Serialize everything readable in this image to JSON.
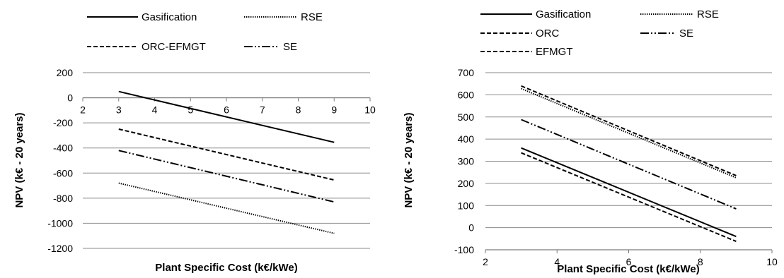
{
  "chart_data": [
    {
      "type": "line",
      "title": "",
      "xlabel": "Plant Specific Cost (k€/kWe)",
      "ylabel": "NPV  (k€ - 20 years)",
      "xlim": [
        2,
        10
      ],
      "ylim": [
        -1200,
        200
      ],
      "x_ticks": [
        2,
        3,
        4,
        5,
        6,
        7,
        8,
        9,
        10
      ],
      "y_ticks": [
        200,
        0,
        -200,
        -400,
        -600,
        -800,
        -1000,
        -1200
      ],
      "x_axis_at_y": 0,
      "grid": "horizontal",
      "legend_position": "top",
      "series": [
        {
          "name": "Gasification",
          "style": "solid",
          "x": [
            3,
            9
          ],
          "y": [
            50,
            -355
          ]
        },
        {
          "name": "RSE",
          "style": "dotted",
          "x": [
            3,
            9
          ],
          "y": [
            -680,
            -1080
          ]
        },
        {
          "name": "ORC-EFMGT",
          "style": "dashed",
          "x": [
            3,
            9
          ],
          "y": [
            -250,
            -655
          ]
        },
        {
          "name": "SE",
          "style": "dashdotdot",
          "x": [
            3,
            9
          ],
          "y": [
            -420,
            -830
          ]
        }
      ]
    },
    {
      "type": "line",
      "title": "",
      "xlabel": "Plant Specific Cost (k€/kWe)",
      "ylabel": "NPV   (k€ - 20 years)",
      "xlim": [
        2,
        10
      ],
      "ylim": [
        -100,
        700
      ],
      "x_ticks": [
        2,
        4,
        6,
        8,
        10
      ],
      "y_ticks": [
        700,
        600,
        500,
        400,
        300,
        200,
        100,
        0,
        -100
      ],
      "x_axis_at_y": -100,
      "grid": "horizontal",
      "legend_position": "top",
      "series": [
        {
          "name": "Gasification",
          "style": "solid",
          "x": [
            3,
            9
          ],
          "y": [
            360,
            -40
          ]
        },
        {
          "name": "RSE",
          "style": "dotted",
          "x": [
            3,
            9
          ],
          "y": [
            628,
            225
          ]
        },
        {
          "name": "ORC",
          "style": "dashed",
          "x": [
            3,
            9
          ],
          "y": [
            640,
            235
          ]
        },
        {
          "name": "SE",
          "style": "dashdotdot",
          "x": [
            3,
            9
          ],
          "y": [
            488,
            85
          ]
        },
        {
          "name": "EFMGT",
          "style": "dashed",
          "x": [
            3,
            9
          ],
          "y": [
            338,
            -62
          ]
        }
      ]
    }
  ]
}
